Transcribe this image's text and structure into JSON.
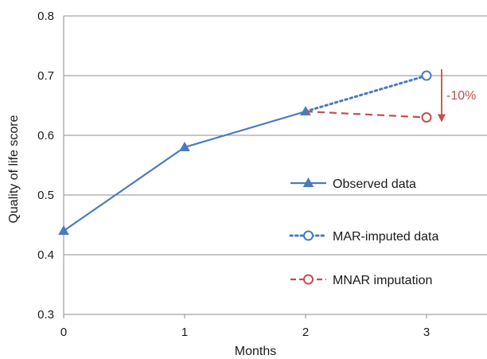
{
  "chart_data": {
    "type": "line",
    "title": "",
    "xlabel": "Months",
    "ylabel": "Quality of life score",
    "xlim": [
      0,
      3.5
    ],
    "ylim": [
      0.3,
      0.8
    ],
    "x_ticks": [
      "0",
      "1",
      "2",
      "3"
    ],
    "y_ticks": [
      "0.3",
      "0.4",
      "0.5",
      "0.6",
      "0.7",
      "0.8"
    ],
    "grid": "horizontal",
    "legend_position": "right",
    "series": [
      {
        "name": "Observed data",
        "x": [
          0,
          1,
          2
        ],
        "y": [
          0.44,
          0.58,
          0.64
        ],
        "color": "#4a7bbf",
        "line_style": "solid",
        "marker": "triangle"
      },
      {
        "name": "MAR-imputed data",
        "x": [
          2,
          3
        ],
        "y": [
          0.64,
          0.7
        ],
        "color": "#4a7bbf",
        "line_style": "dotted",
        "marker": "open-circle"
      },
      {
        "name": "MNAR imputation",
        "x": [
          2,
          3
        ],
        "y": [
          0.64,
          0.63
        ],
        "color": "#c0504d",
        "line_style": "dashed",
        "marker": "open-circle"
      }
    ],
    "annotation": {
      "text": "-10%",
      "color": "#c0504d",
      "arrow": "down"
    }
  }
}
